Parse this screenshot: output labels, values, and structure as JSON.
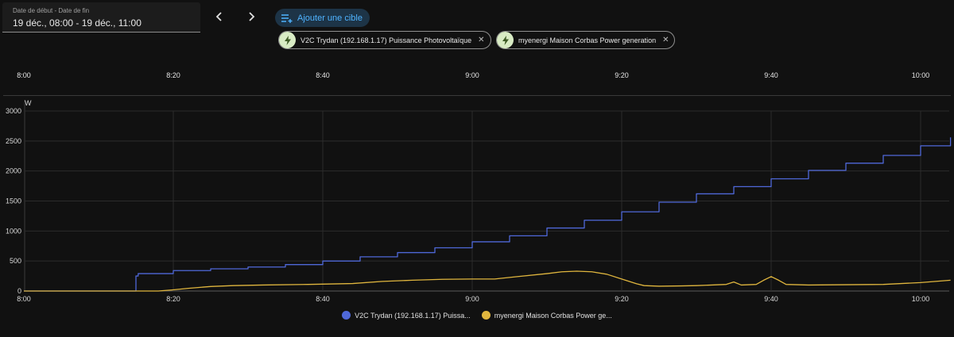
{
  "date_picker": {
    "label": "Date de début - Date de fin",
    "value": "19 déc., 08:00 - 19 déc., 11:00"
  },
  "nav": {
    "prev_icon": "chevron-left-icon",
    "next_icon": "chevron-right-icon"
  },
  "add_target": {
    "label": "Ajouter une cible",
    "icon": "playlist-add-icon"
  },
  "chips": [
    {
      "label": "V2C Trydan (192.168.1.17) Puissance Photovoltaïque",
      "icon": "lightning-icon"
    },
    {
      "label": "myenergi Maison Corbas Power generation",
      "icon": "lightning-icon"
    }
  ],
  "timeline_labels": [
    "8:00",
    "8:20",
    "8:40",
    "9:00",
    "9:20",
    "9:40",
    "10:00"
  ],
  "chart_data": {
    "type": "line",
    "ylabel": "W",
    "ylim": [
      0,
      3000
    ],
    "yticks": [
      "0",
      "500",
      "1000",
      "1500",
      "2000",
      "2500",
      "3000"
    ],
    "xticks": [
      "8:00",
      "8:20",
      "8:40",
      "9:00",
      "9:20",
      "9:40",
      "10:00"
    ],
    "x_unit": "minutes after 8:00",
    "xlim": [
      0,
      124
    ],
    "grid": true,
    "legend_position": "bottom",
    "series": [
      {
        "name": "V2C Trydan (192.168.1.17) Puissa...",
        "color": "#4f68d9",
        "step": true,
        "x": [
          0,
          15,
          15,
          15.3,
          18,
          20,
          25,
          30,
          35,
          40,
          45,
          50,
          55,
          60,
          65,
          70,
          75,
          80,
          85,
          90,
          95,
          100,
          105,
          110,
          115,
          120,
          124
        ],
        "y": [
          0,
          0,
          250,
          290,
          290,
          340,
          370,
          400,
          440,
          500,
          570,
          640,
          720,
          820,
          920,
          1050,
          1180,
          1320,
          1480,
          1620,
          1740,
          1870,
          2010,
          2130,
          2260,
          2420,
          2560
        ]
      },
      {
        "name": "myenergi Maison Corbas Power ge...",
        "color": "#e0b63e",
        "x": [
          0,
          18,
          20,
          22,
          25,
          28,
          32,
          38,
          44,
          48,
          52,
          56,
          60,
          63,
          66,
          70,
          72,
          74,
          76,
          78,
          80,
          82,
          83,
          85,
          88,
          90,
          94,
          95,
          96,
          98,
          99,
          100,
          101,
          102,
          105,
          110,
          115,
          120,
          124
        ],
        "y": [
          0,
          0,
          20,
          45,
          75,
          90,
          100,
          110,
          125,
          160,
          180,
          195,
          200,
          200,
          240,
          290,
          320,
          330,
          320,
          280,
          200,
          120,
          90,
          80,
          85,
          90,
          110,
          150,
          100,
          110,
          180,
          240,
          180,
          110,
          100,
          105,
          110,
          140,
          180
        ]
      }
    ]
  }
}
